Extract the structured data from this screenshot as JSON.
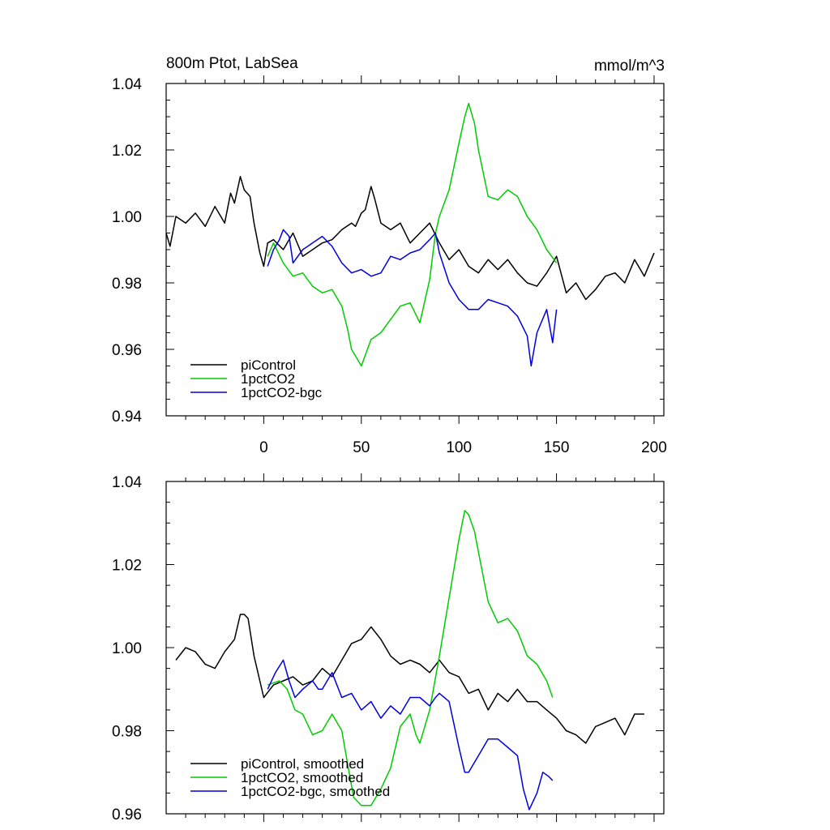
{
  "chart_data": [
    {
      "type": "line",
      "title": "800m Ptot, LabSea",
      "units": "mmol/m^3",
      "xlim": [
        -50,
        205
      ],
      "ylim": [
        0.94,
        1.04
      ],
      "xticks": [
        0,
        50,
        100,
        150,
        200
      ],
      "xtick_labels": [
        "0",
        "50",
        "100",
        "150",
        "200"
      ],
      "yticks": [
        0.94,
        0.96,
        0.98,
        1.0,
        1.02,
        1.04
      ],
      "ytick_labels": [
        "0.94",
        "0.96",
        "0.98",
        "1.00",
        "1.02",
        "1.04"
      ],
      "grid": false,
      "legend_position": "bottom-left",
      "series": [
        {
          "name": "piControl",
          "color": "#000000",
          "x": [
            -50,
            -48,
            -45,
            -40,
            -35,
            -30,
            -25,
            -20,
            -17,
            -15,
            -12,
            -10,
            -7,
            -5,
            -2,
            0,
            2,
            5,
            10,
            15,
            20,
            25,
            30,
            35,
            40,
            45,
            47,
            50,
            52,
            55,
            57,
            60,
            65,
            70,
            75,
            80,
            85,
            90,
            95,
            100,
            105,
            110,
            115,
            120,
            125,
            130,
            135,
            140,
            145,
            150,
            155,
            160,
            165,
            170,
            175,
            180,
            185,
            190,
            195,
            200
          ],
          "y": [
            0.995,
            0.991,
            1.0,
            0.998,
            1.001,
            0.997,
            1.003,
            0.998,
            1.007,
            1.004,
            1.012,
            1.008,
            1.006,
            0.998,
            0.989,
            0.985,
            0.992,
            0.993,
            0.99,
            0.995,
            0.988,
            0.99,
            0.992,
            0.993,
            0.996,
            0.998,
            0.997,
            1.001,
            1.002,
            1.009,
            1.005,
            0.998,
            0.996,
            0.998,
            0.992,
            0.995,
            0.998,
            0.992,
            0.987,
            0.99,
            0.985,
            0.983,
            0.987,
            0.984,
            0.987,
            0.983,
            0.98,
            0.979,
            0.983,
            0.988,
            0.977,
            0.98,
            0.975,
            0.978,
            0.982,
            0.983,
            0.98,
            0.987,
            0.982,
            0.989
          ]
        },
        {
          "name": "1pctCO2",
          "color": "#00cc00",
          "x": [
            2,
            5,
            10,
            15,
            20,
            25,
            30,
            35,
            40,
            43,
            45,
            48,
            50,
            55,
            60,
            65,
            70,
            75,
            80,
            85,
            88,
            90,
            95,
            100,
            103,
            105,
            108,
            110,
            115,
            120,
            125,
            130,
            135,
            140,
            145,
            150
          ],
          "y": [
            0.988,
            0.992,
            0.986,
            0.982,
            0.983,
            0.979,
            0.977,
            0.978,
            0.973,
            0.966,
            0.96,
            0.957,
            0.955,
            0.963,
            0.965,
            0.969,
            0.973,
            0.974,
            0.968,
            0.981,
            0.995,
            1.0,
            1.008,
            1.022,
            1.03,
            1.034,
            1.028,
            1.02,
            1.006,
            1.005,
            1.008,
            1.006,
            1.0,
            0.996,
            0.99,
            0.986
          ]
        },
        {
          "name": "1pctCO2-bgc",
          "color": "#0000dd",
          "x": [
            2,
            5,
            8,
            10,
            13,
            15,
            20,
            25,
            30,
            35,
            40,
            45,
            50,
            55,
            60,
            65,
            70,
            75,
            80,
            85,
            88,
            90,
            95,
            100,
            105,
            110,
            115,
            120,
            125,
            130,
            135,
            137,
            140,
            145,
            148,
            150
          ],
          "y": [
            0.985,
            0.99,
            0.993,
            0.996,
            0.994,
            0.986,
            0.99,
            0.992,
            0.994,
            0.991,
            0.986,
            0.983,
            0.984,
            0.982,
            0.983,
            0.988,
            0.987,
            0.989,
            0.99,
            0.993,
            0.995,
            0.989,
            0.98,
            0.975,
            0.972,
            0.972,
            0.975,
            0.974,
            0.973,
            0.97,
            0.964,
            0.955,
            0.965,
            0.972,
            0.962,
            0.972
          ]
        }
      ]
    },
    {
      "type": "line",
      "title": "",
      "xlim": [
        -50,
        205
      ],
      "ylim": [
        0.96,
        1.04
      ],
      "xticks": [
        0,
        50,
        100,
        150,
        200
      ],
      "yticks": [
        0.96,
        0.98,
        1.0,
        1.02,
        1.04
      ],
      "ytick_labels": [
        "0.96",
        "0.98",
        "1.00",
        "1.02",
        "1.04"
      ],
      "grid": false,
      "legend_position": "bottom-left",
      "series": [
        {
          "name": "piControl, smoothed",
          "color": "#000000",
          "x": [
            -45,
            -40,
            -35,
            -30,
            -25,
            -20,
            -15,
            -12,
            -10,
            -8,
            -5,
            0,
            5,
            10,
            15,
            20,
            25,
            30,
            35,
            40,
            45,
            50,
            55,
            60,
            65,
            70,
            75,
            80,
            85,
            90,
            95,
            100,
            105,
            110,
            115,
            120,
            125,
            130,
            135,
            140,
            145,
            150,
            155,
            160,
            165,
            170,
            175,
            180,
            185,
            190,
            195
          ],
          "y": [
            0.997,
            1.0,
            0.999,
            0.996,
            0.995,
            0.999,
            1.002,
            1.008,
            1.008,
            1.007,
            0.998,
            0.988,
            0.991,
            0.992,
            0.993,
            0.991,
            0.992,
            0.995,
            0.993,
            0.997,
            1.001,
            1.002,
            1.005,
            1.002,
            0.998,
            0.996,
            0.997,
            0.996,
            0.994,
            0.997,
            0.994,
            0.993,
            0.989,
            0.99,
            0.985,
            0.989,
            0.987,
            0.99,
            0.987,
            0.987,
            0.985,
            0.983,
            0.98,
            0.979,
            0.977,
            0.981,
            0.982,
            0.983,
            0.979,
            0.984,
            0.984
          ]
        },
        {
          "name": "1pctCO2, smoothed",
          "color": "#00cc00",
          "x": [
            2,
            8,
            12,
            16,
            20,
            25,
            30,
            35,
            40,
            43,
            46,
            50,
            55,
            60,
            65,
            70,
            75,
            78,
            80,
            85,
            90,
            95,
            100,
            103,
            105,
            108,
            110,
            115,
            120,
            125,
            130,
            135,
            140,
            145,
            148
          ],
          "y": [
            0.991,
            0.992,
            0.99,
            0.985,
            0.984,
            0.979,
            0.98,
            0.984,
            0.98,
            0.972,
            0.964,
            0.962,
            0.962,
            0.966,
            0.971,
            0.981,
            0.984,
            0.979,
            0.977,
            0.985,
            0.998,
            1.012,
            1.026,
            1.033,
            1.032,
            1.028,
            1.023,
            1.011,
            1.006,
            1.007,
            1.004,
            0.998,
            0.996,
            0.992,
            0.988
          ]
        },
        {
          "name": "1pctCO2-bgc, smoothed",
          "color": "#0000dd",
          "x": [
            2,
            6,
            10,
            13,
            16,
            20,
            25,
            28,
            30,
            35,
            40,
            45,
            50,
            55,
            60,
            65,
            70,
            75,
            80,
            85,
            88,
            90,
            95,
            100,
            103,
            105,
            110,
            115,
            120,
            125,
            130,
            133,
            136,
            140,
            143,
            146,
            148
          ],
          "y": [
            0.99,
            0.994,
            0.997,
            0.992,
            0.988,
            0.99,
            0.992,
            0.99,
            0.99,
            0.994,
            0.988,
            0.989,
            0.985,
            0.987,
            0.983,
            0.986,
            0.984,
            0.988,
            0.988,
            0.986,
            0.988,
            0.989,
            0.987,
            0.976,
            0.97,
            0.97,
            0.974,
            0.978,
            0.978,
            0.976,
            0.974,
            0.966,
            0.961,
            0.965,
            0.97,
            0.969,
            0.968
          ]
        }
      ]
    }
  ]
}
